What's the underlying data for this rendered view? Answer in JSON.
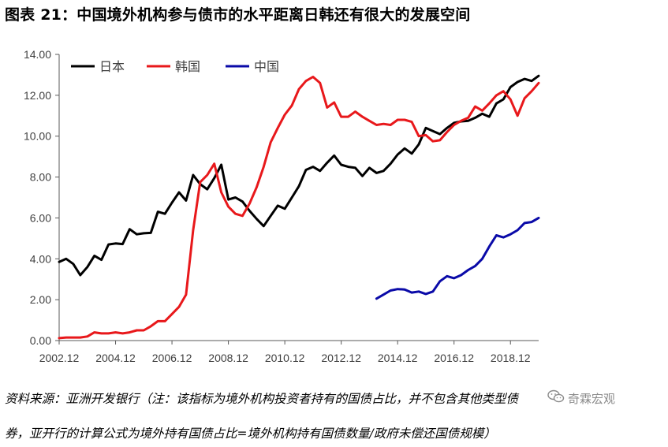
{
  "title": "图表 21：中国境外机构参与债市的水平距离日韩还有很大的发展空间",
  "notes": {
    "line1": "资料来源：亚洲开发银行（注：该指标为境外机构投资者持有的国债占比，并不包含其他类型债",
    "line2": "券，亚开行的计算公式为境外持有国债占比=境外机构持有国债数量/政府未偿还国债规模）"
  },
  "watermark": {
    "text": "奇霖宏观",
    "icon": "wechat-icon",
    "color": "#8a8a8a"
  },
  "chart_data": {
    "type": "line",
    "title": "",
    "xlabel": "",
    "ylabel": "",
    "ylim": [
      0,
      14
    ],
    "yticks": [
      "0.00",
      "2.00",
      "4.00",
      "6.00",
      "8.00",
      "10.00",
      "12.00",
      "14.00"
    ],
    "xlim": [
      2002.75,
      2019.75
    ],
    "xticks": [
      "2002.12",
      "2004.12",
      "2006.12",
      "2008.12",
      "2010.12",
      "2012.12",
      "2014.12",
      "2016.12",
      "2018.12"
    ],
    "grid": false,
    "legend_position": "top-left",
    "series": [
      {
        "name": "日本",
        "color": "#000000",
        "x": [
          2002.75,
          2003.0,
          2003.25,
          2003.5,
          2003.75,
          2004.0,
          2004.25,
          2004.5,
          2004.75,
          2005.0,
          2005.25,
          2005.5,
          2005.75,
          2006.0,
          2006.25,
          2006.5,
          2006.75,
          2007.0,
          2007.25,
          2007.5,
          2007.75,
          2008.0,
          2008.25,
          2008.5,
          2008.75,
          2009.0,
          2009.25,
          2009.5,
          2009.75,
          2010.0,
          2010.25,
          2010.5,
          2010.75,
          2011.0,
          2011.25,
          2011.5,
          2011.75,
          2012.0,
          2012.25,
          2012.5,
          2012.75,
          2013.0,
          2013.25,
          2013.5,
          2013.75,
          2014.0,
          2014.25,
          2014.5,
          2014.75,
          2015.0,
          2015.25,
          2015.5,
          2015.75,
          2016.0,
          2016.25,
          2016.5,
          2016.75,
          2017.0,
          2017.25,
          2017.5,
          2017.75,
          2018.0,
          2018.25,
          2018.5,
          2018.75,
          2019.0,
          2019.25,
          2019.5,
          2019.75
        ],
        "values": [
          3.85,
          4.0,
          3.75,
          3.2,
          3.6,
          4.15,
          3.95,
          4.7,
          4.75,
          4.72,
          5.45,
          5.2,
          5.25,
          5.27,
          6.3,
          6.2,
          6.75,
          7.25,
          6.85,
          8.1,
          7.65,
          7.4,
          7.95,
          8.6,
          6.9,
          7.0,
          6.8,
          6.35,
          5.95,
          5.6,
          6.1,
          6.6,
          6.45,
          7.0,
          7.55,
          8.35,
          8.5,
          8.3,
          8.7,
          9.05,
          8.6,
          8.5,
          8.45,
          8.05,
          8.45,
          8.2,
          8.3,
          8.65,
          9.1,
          9.4,
          9.15,
          9.6,
          10.4,
          10.25,
          10.1,
          10.4,
          10.65,
          10.72,
          10.75,
          10.9,
          11.1,
          10.95,
          11.6,
          11.8,
          12.4,
          12.65,
          12.8,
          12.7,
          12.95
        ]
      },
      {
        "name": "韩国",
        "color": "#e8181b",
        "x": [
          2002.75,
          2003.0,
          2003.25,
          2003.5,
          2003.75,
          2004.0,
          2004.25,
          2004.5,
          2004.75,
          2005.0,
          2005.25,
          2005.5,
          2005.75,
          2006.0,
          2006.25,
          2006.5,
          2006.75,
          2007.0,
          2007.25,
          2007.5,
          2007.75,
          2008.0,
          2008.25,
          2008.5,
          2008.75,
          2009.0,
          2009.25,
          2009.5,
          2009.75,
          2010.0,
          2010.25,
          2010.5,
          2010.75,
          2011.0,
          2011.25,
          2011.5,
          2011.75,
          2012.0,
          2012.25,
          2012.5,
          2012.75,
          2013.0,
          2013.25,
          2013.5,
          2013.75,
          2014.0,
          2014.25,
          2014.5,
          2014.75,
          2015.0,
          2015.25,
          2015.5,
          2015.75,
          2016.0,
          2016.25,
          2016.5,
          2016.75,
          2017.0,
          2017.25,
          2017.5,
          2017.75,
          2018.0,
          2018.25,
          2018.5,
          2018.75,
          2019.0,
          2019.25,
          2019.5,
          2019.75
        ],
        "values": [
          0.12,
          0.15,
          0.15,
          0.15,
          0.2,
          0.4,
          0.35,
          0.35,
          0.4,
          0.35,
          0.4,
          0.5,
          0.5,
          0.7,
          0.95,
          0.95,
          1.3,
          1.65,
          2.25,
          5.4,
          7.75,
          8.1,
          8.65,
          7.25,
          6.55,
          6.2,
          6.1,
          6.7,
          7.5,
          8.5,
          9.7,
          10.4,
          11.05,
          11.5,
          12.3,
          12.7,
          12.9,
          12.6,
          11.4,
          11.65,
          10.95,
          10.95,
          11.2,
          10.95,
          10.75,
          10.55,
          10.6,
          10.55,
          10.8,
          10.8,
          10.7,
          10.0,
          10.05,
          9.75,
          9.8,
          10.2,
          10.55,
          10.75,
          10.9,
          11.45,
          11.25,
          11.6,
          12.0,
          12.2,
          11.8,
          11.0,
          11.85,
          12.2,
          12.6
        ]
      },
      {
        "name": "中国",
        "color": "#0a0aa8",
        "x": [
          2014.0,
          2014.25,
          2014.5,
          2014.75,
          2015.0,
          2015.25,
          2015.5,
          2015.75,
          2016.0,
          2016.25,
          2016.5,
          2016.75,
          2017.0,
          2017.25,
          2017.5,
          2017.75,
          2018.0,
          2018.25,
          2018.5,
          2018.75,
          2019.0,
          2019.25,
          2019.5,
          2019.75
        ],
        "values": [
          2.05,
          2.25,
          2.45,
          2.52,
          2.5,
          2.35,
          2.4,
          2.28,
          2.4,
          2.9,
          3.15,
          3.05,
          3.2,
          3.45,
          3.65,
          4.0,
          4.6,
          5.15,
          5.05,
          5.2,
          5.4,
          5.75,
          5.8,
          6.0
        ]
      }
    ]
  }
}
